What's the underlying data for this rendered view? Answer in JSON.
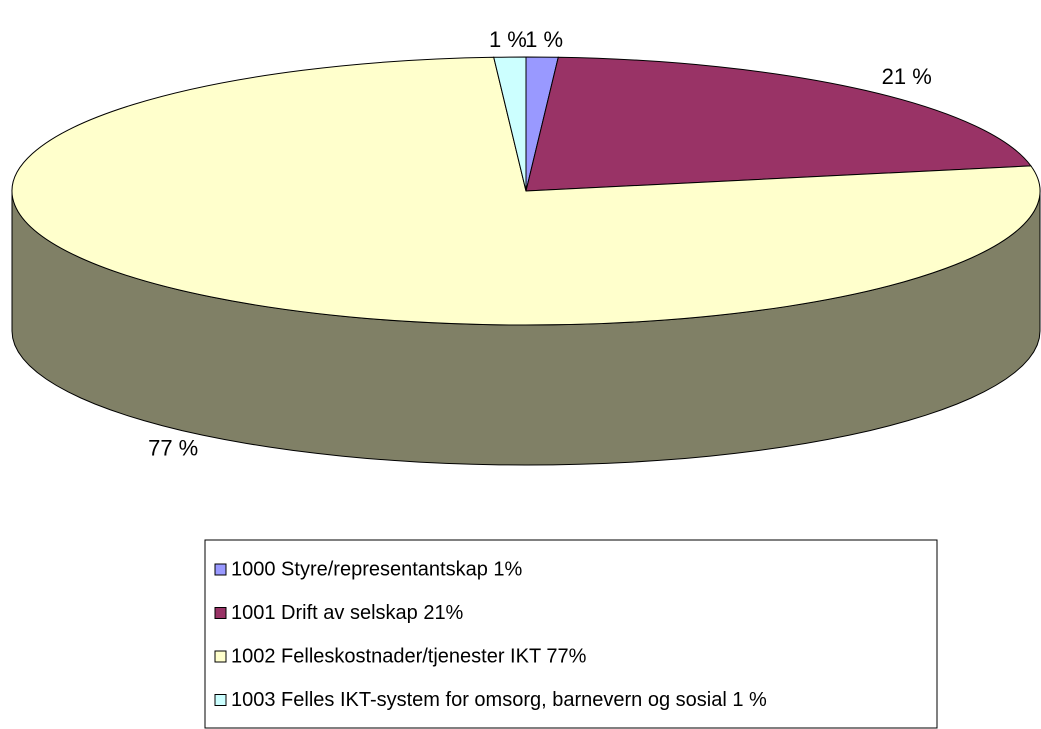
{
  "chart_data": {
    "type": "pie",
    "categories": [
      "1000 Styre/representantskap 1%",
      "1001 Drift av selskap 21%",
      "1002 Felleskostnader/tjenester IKT 77%",
      "1003 Felles IKT-system for omsorg, barnevern og sosial 1 %"
    ],
    "values": [
      1,
      21,
      77,
      1
    ],
    "value_labels": [
      "1 %",
      "21 %",
      "77 %",
      "1 %"
    ],
    "colors": [
      "#9999ff",
      "#993366",
      "#ffffcc",
      "#ccffff"
    ],
    "legend": "bottom"
  }
}
